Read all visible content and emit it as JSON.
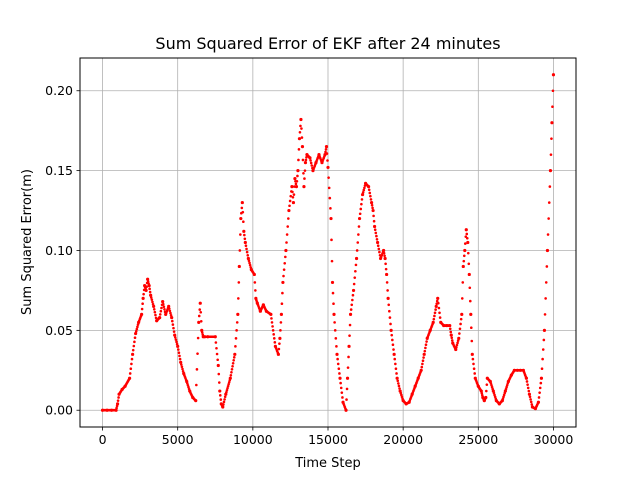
{
  "chart_data": {
    "type": "scatter",
    "title": "Sum Squared Error of EKF after 24 minutes",
    "xlabel": "Time Step",
    "ylabel": "Sum Squared Error(m)",
    "xlim": [
      -1500,
      31500
    ],
    "ylim": [
      -0.0105,
      0.2205
    ],
    "xticks": [
      0,
      5000,
      10000,
      15000,
      20000,
      25000,
      30000
    ],
    "xtick_labels": [
      "0",
      "5000",
      "10000",
      "15000",
      "20000",
      "25000",
      "30000"
    ],
    "yticks": [
      0.0,
      0.05,
      0.1,
      0.15,
      0.2
    ],
    "ytick_labels": [
      "0.00",
      "0.05",
      "0.10",
      "0.15",
      "0.20"
    ],
    "grid": true,
    "marker_color": "#ff0000",
    "series": [
      {
        "x": [
          0,
          300,
          600,
          900,
          1000,
          1100,
          1300,
          1500,
          1800,
          2000,
          2200,
          2400,
          2600,
          2700,
          2800,
          2900,
          3000,
          3100,
          3200,
          3400,
          3600,
          3800,
          4000,
          4200,
          4400,
          4600,
          4800,
          5000,
          5200,
          5400,
          5600,
          5800,
          6000,
          6200,
          6400,
          6500,
          6600,
          6700,
          6800,
          7000,
          7500,
          7700,
          7800,
          7900,
          8000,
          8200,
          8500,
          8800,
          9000,
          9100,
          9200,
          9300,
          9400,
          9500,
          9700,
          9900,
          10100,
          10200,
          10300,
          10500,
          10700,
          10900,
          11200,
          11500,
          11700,
          11800,
          11900,
          12000,
          12200,
          12400,
          12600,
          12700,
          12800,
          12900,
          13000,
          13100,
          13200,
          13300,
          13400,
          13500,
          13600,
          13800,
          14000,
          14200,
          14400,
          14600,
          14800,
          14900,
          15000,
          15200,
          15300,
          15400,
          15600,
          15800,
          16000,
          16200,
          16300,
          16400,
          16500,
          16700,
          16900,
          17100,
          17300,
          17500,
          17700,
          17900,
          18000,
          18100,
          18300,
          18500,
          18700,
          18800,
          18900,
          19000,
          19200,
          19400,
          19600,
          19800,
          20000,
          20200,
          20400,
          20600,
          20800,
          21000,
          21200,
          21400,
          21600,
          21800,
          22000,
          22200,
          22300,
          22500,
          22700,
          22900,
          23100,
          23200,
          23300,
          23500,
          23700,
          23900,
          24000,
          24100,
          24200,
          24300,
          24400,
          24500,
          24600,
          24800,
          25000,
          25200,
          25300,
          25400,
          25500,
          25600,
          25800,
          26000,
          26200,
          26400,
          26600,
          26800,
          27000,
          27200,
          27400,
          27600,
          27800,
          28000,
          28200,
          28400,
          28600,
          28800,
          29000,
          29200,
          29400,
          29600,
          29800,
          29900,
          30000
        ],
        "y": [
          0.0,
          0.0,
          0.0,
          0.0,
          0.004,
          0.01,
          0.013,
          0.015,
          0.02,
          0.035,
          0.048,
          0.055,
          0.06,
          0.07,
          0.078,
          0.075,
          0.082,
          0.078,
          0.072,
          0.065,
          0.056,
          0.058,
          0.068,
          0.06,
          0.065,
          0.058,
          0.047,
          0.04,
          0.03,
          0.023,
          0.018,
          0.012,
          0.008,
          0.006,
          0.055,
          0.067,
          0.05,
          0.046,
          0.046,
          0.046,
          0.046,
          0.028,
          0.012,
          0.004,
          0.002,
          0.01,
          0.02,
          0.035,
          0.06,
          0.09,
          0.12,
          0.13,
          0.112,
          0.105,
          0.095,
          0.088,
          0.085,
          0.07,
          0.067,
          0.062,
          0.066,
          0.062,
          0.06,
          0.04,
          0.035,
          0.045,
          0.06,
          0.08,
          0.1,
          0.125,
          0.14,
          0.13,
          0.145,
          0.14,
          0.15,
          0.17,
          0.182,
          0.165,
          0.14,
          0.155,
          0.16,
          0.158,
          0.15,
          0.155,
          0.16,
          0.155,
          0.16,
          0.165,
          0.152,
          0.12,
          0.08,
          0.06,
          0.035,
          0.02,
          0.005,
          0.0,
          0.02,
          0.04,
          0.06,
          0.075,
          0.095,
          0.12,
          0.135,
          0.142,
          0.14,
          0.13,
          0.125,
          0.115,
          0.105,
          0.095,
          0.1,
          0.095,
          0.085,
          0.07,
          0.05,
          0.035,
          0.02,
          0.012,
          0.006,
          0.004,
          0.005,
          0.01,
          0.015,
          0.02,
          0.025,
          0.035,
          0.045,
          0.05,
          0.055,
          0.065,
          0.07,
          0.055,
          0.053,
          0.053,
          0.053,
          0.047,
          0.042,
          0.038,
          0.045,
          0.06,
          0.09,
          0.1,
          0.113,
          0.105,
          0.085,
          0.06,
          0.035,
          0.02,
          0.015,
          0.012,
          0.008,
          0.006,
          0.008,
          0.02,
          0.018,
          0.012,
          0.006,
          0.004,
          0.006,
          0.012,
          0.018,
          0.022,
          0.025,
          0.025,
          0.025,
          0.025,
          0.02,
          0.01,
          0.002,
          0.001,
          0.005,
          0.02,
          0.05,
          0.1,
          0.15,
          0.18,
          0.21
        ]
      }
    ]
  }
}
